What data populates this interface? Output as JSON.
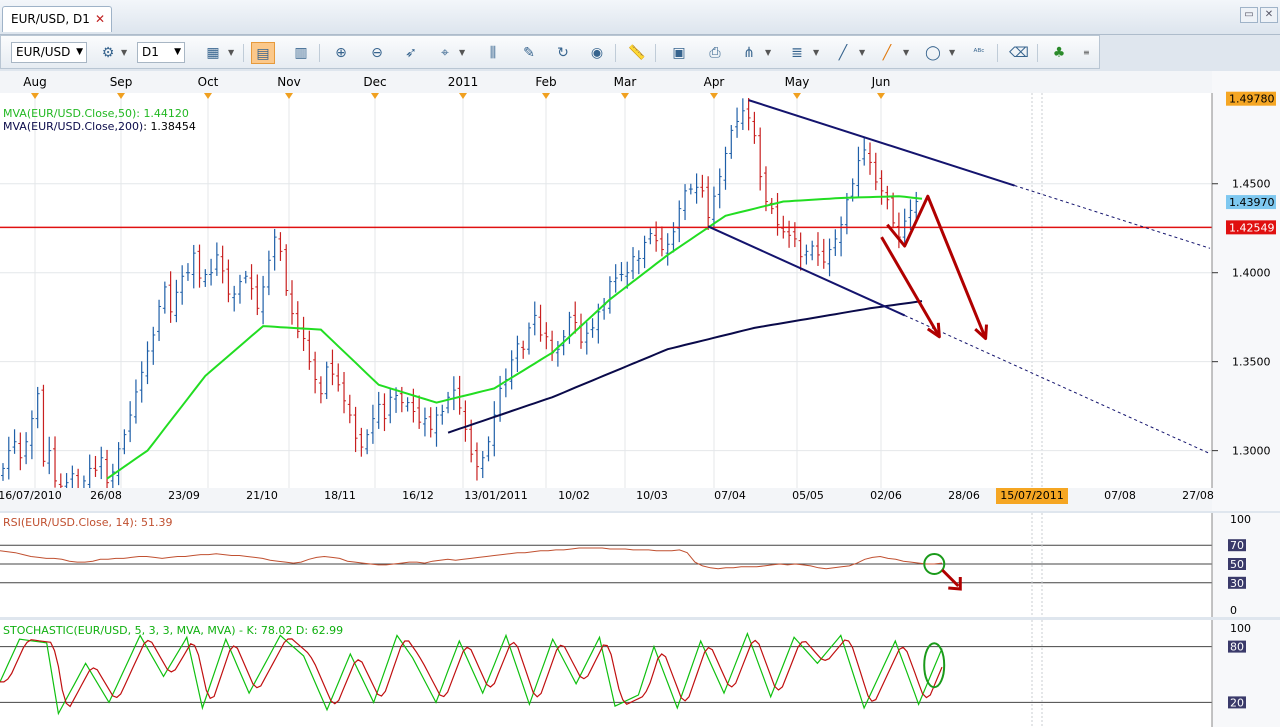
{
  "window": {
    "tab_title": "EUR/USD, D1",
    "tab_close": "✕",
    "restore_icon": "restore-icon",
    "close_icon": "close-icon"
  },
  "toolbar": {
    "symbol": "EUR/USD",
    "timeframe": "D1",
    "icons": [
      "instrument-icon",
      "chart-type-icon",
      "bar-icon",
      "candle-icon",
      "zoom-in-icon",
      "zoom-out-icon",
      "cursor-icon",
      "crosshair-icon",
      "indicator-icon",
      "template-icon",
      "refresh-icon",
      "globe-icon",
      "ruler-icon",
      "picture-icon",
      "print-icon",
      "fork-icon",
      "channel-icon",
      "line-icon",
      "pen-icon",
      "ellipse-icon",
      "text-icon",
      "eraser-icon",
      "objects-icon"
    ]
  },
  "colors": {
    "price_up": "#1f5fa8",
    "price_down": "#c82020",
    "ma50": "#22dd22",
    "ma200": "#0a0a4a",
    "trendline": "#14146e",
    "resistance": "#e01010",
    "arrows": "#b00000",
    "rsi": "#c05030",
    "stoch_k": "#10c010",
    "stoch_d": "#c01010"
  },
  "chart_data": [
    {
      "type": "candlestick",
      "title": "EUR/USD, D1",
      "top_month_labels": [
        "Aug",
        "Sep",
        "Oct",
        "Nov",
        "Dec",
        "2011",
        "Feb",
        "Mar",
        "Apr",
        "May",
        "Jun"
      ],
      "x_tick_labels": [
        "16/07/2010",
        "26/08",
        "23/09",
        "21/10",
        "18/11",
        "16/12",
        "13/01/2011",
        "10/02",
        "10/03",
        "07/04",
        "05/05",
        "02/06",
        "28/06",
        "15/07/2011",
        "07/08",
        "27/08"
      ],
      "highlighted_date": "15/07/2011",
      "y_ticks": [
        "1.4500",
        "1.4000",
        "1.3500",
        "1.3000"
      ],
      "ylim": [
        1.279,
        1.501
      ],
      "price_labels": {
        "high": "1.49780",
        "current": "1.43970",
        "resistance": "1.42549"
      },
      "resistance_level": 1.42549,
      "series": [
        {
          "name": "MVA(EUR/USD.Close,50)",
          "value_label": "1.44120"
        },
        {
          "name": "MVA(EUR/USD.Close,200)",
          "value_label": "1.38454"
        }
      ],
      "close_series": [
        1.29,
        1.3,
        1.305,
        1.296,
        1.305,
        1.318,
        1.332,
        1.294,
        1.3,
        1.283,
        1.28,
        1.282,
        1.287,
        1.272,
        1.283,
        1.29,
        1.289,
        1.296,
        1.282,
        1.288,
        1.301,
        1.309,
        1.32,
        1.333,
        1.344,
        1.356,
        1.365,
        1.381,
        1.392,
        1.378,
        1.389,
        1.398,
        1.4,
        1.411,
        1.397,
        1.399,
        1.4,
        1.41,
        1.401,
        1.388,
        1.388,
        1.395,
        1.398,
        1.391,
        1.38,
        1.392,
        1.407,
        1.42,
        1.412,
        1.39,
        1.377,
        1.367,
        1.363,
        1.35,
        1.34,
        1.332,
        1.347,
        1.343,
        1.337,
        1.328,
        1.32,
        1.307,
        1.302,
        1.309,
        1.318,
        1.326,
        1.318,
        1.33,
        1.331,
        1.327,
        1.327,
        1.322,
        1.316,
        1.318,
        1.312,
        1.32,
        1.322,
        1.33,
        1.334,
        1.324,
        1.312,
        1.298,
        1.291,
        1.296,
        1.305,
        1.32,
        1.335,
        1.34,
        1.351,
        1.36,
        1.357,
        1.369,
        1.376,
        1.365,
        1.364,
        1.355,
        1.357,
        1.364,
        1.375,
        1.372,
        1.361,
        1.366,
        1.369,
        1.378,
        1.382,
        1.395,
        1.397,
        1.399,
        1.4,
        1.409,
        1.408,
        1.417,
        1.422,
        1.418,
        1.413,
        1.416,
        1.423,
        1.436,
        1.446,
        1.447,
        1.448,
        1.446,
        1.431,
        1.443,
        1.454,
        1.467,
        1.48,
        1.485,
        1.491,
        1.487,
        1.477,
        1.454,
        1.44,
        1.436,
        1.427,
        1.423,
        1.421,
        1.419,
        1.409,
        1.412,
        1.415,
        1.41,
        1.406,
        1.413,
        1.419,
        1.427,
        1.441,
        1.45,
        1.463,
        1.469,
        1.462,
        1.451,
        1.446,
        1.441,
        1.428,
        1.42,
        1.429,
        1.435,
        1.44
      ],
      "ma50_anchors": [
        [
          17,
          1.282
        ],
        [
          25,
          1.3
        ],
        [
          35,
          1.342
        ],
        [
          45,
          1.37
        ],
        [
          55,
          1.368
        ],
        [
          65,
          1.337
        ],
        [
          75,
          1.327
        ],
        [
          85,
          1.335
        ],
        [
          95,
          1.355
        ],
        [
          105,
          1.385
        ],
        [
          115,
          1.41
        ],
        [
          125,
          1.432
        ],
        [
          135,
          1.44
        ],
        [
          145,
          1.442
        ],
        [
          155,
          1.443
        ],
        [
          160,
          1.4412
        ]
      ],
      "ma200_anchors": [
        [
          76,
          1.309
        ],
        [
          95,
          1.33
        ],
        [
          115,
          1.357
        ],
        [
          130,
          1.369
        ],
        [
          150,
          1.38
        ],
        [
          160,
          1.3845
        ]
      ],
      "upper_trendline": [
        [
          129,
          1.497
        ],
        [
          175,
          1.449
        ]
      ],
      "lower_trendline": [
        [
          122,
          1.426
        ],
        [
          156,
          1.376
        ]
      ],
      "arrow_path": [
        [
          153,
          1.427
        ],
        [
          156,
          1.415
        ],
        [
          160,
          1.443
        ],
        [
          170,
          1.363
        ]
      ],
      "arrow_down_1": [
        [
          152,
          1.42
        ],
        [
          162,
          1.364
        ]
      ]
    },
    {
      "type": "line",
      "title": "RSI(EUR/USD.Close, 14): 51.39",
      "ylim": [
        0,
        100
      ],
      "y_tick_labels": [
        "100",
        "70",
        "50",
        "30",
        "0"
      ],
      "levels": [
        70,
        50,
        30
      ],
      "values": [
        64,
        63,
        62,
        60,
        58,
        57,
        56,
        56,
        55,
        53,
        52,
        52,
        53,
        55,
        55,
        56,
        56,
        57,
        58,
        58,
        57,
        56,
        57,
        58,
        58,
        59,
        60,
        60,
        61,
        60,
        59,
        59,
        58,
        57,
        56,
        54,
        53,
        52,
        51,
        52,
        55,
        57,
        58,
        57,
        56,
        53,
        52,
        51,
        50,
        49,
        49,
        50,
        51,
        52,
        52,
        51,
        53,
        54,
        55,
        54,
        55,
        56,
        57,
        58,
        59,
        60,
        61,
        62,
        62,
        63,
        64,
        64,
        65,
        65,
        66,
        67,
        67,
        67,
        67,
        66,
        66,
        66,
        65,
        65,
        65,
        64,
        64,
        64,
        65,
        62,
        52,
        48,
        46,
        45,
        46,
        46,
        47,
        47,
        47,
        48,
        49,
        50,
        49,
        50,
        49,
        48,
        46,
        45,
        46,
        47,
        48,
        51,
        55,
        57,
        58,
        56,
        55,
        53,
        52,
        51,
        50,
        50,
        51
      ],
      "green_circle_index": 121
    },
    {
      "type": "line",
      "title": "STOCHASTIC(EUR/USD, 5, 3, 3, MVA, MVA) -  K: 78.02  D: 62.99",
      "ylim": [
        0,
        100
      ],
      "y_tick_labels": [
        "100",
        "80",
        "20"
      ],
      "levels": [
        80,
        20
      ],
      "k_anchors": [
        [
          0,
          42
        ],
        [
          5,
          88
        ],
        [
          12,
          84
        ],
        [
          15,
          8
        ],
        [
          22,
          62
        ],
        [
          28,
          20
        ],
        [
          36,
          92
        ],
        [
          42,
          48
        ],
        [
          48,
          90
        ],
        [
          52,
          14
        ],
        [
          58,
          88
        ],
        [
          64,
          30
        ],
        [
          72,
          92
        ],
        [
          78,
          70
        ],
        [
          84,
          12
        ],
        [
          90,
          72
        ],
        [
          96,
          20
        ],
        [
          102,
          92
        ],
        [
          106,
          68
        ],
        [
          112,
          20
        ],
        [
          118,
          86
        ],
        [
          124,
          30
        ],
        [
          130,
          92
        ],
        [
          136,
          18
        ],
        [
          142,
          88
        ],
        [
          148,
          40
        ],
        [
          154,
          90
        ],
        [
          158,
          16
        ],
        [
          164,
          28
        ],
        [
          168,
          80
        ],
        [
          174,
          14
        ],
        [
          180,
          86
        ],
        [
          186,
          30
        ],
        [
          192,
          94
        ],
        [
          198,
          26
        ],
        [
          204,
          90
        ],
        [
          210,
          62
        ],
        [
          216,
          92
        ],
        [
          222,
          14
        ],
        [
          230,
          86
        ],
        [
          236,
          18
        ],
        [
          242,
          78
        ]
      ],
      "green_ellipse_index": 240
    }
  ]
}
